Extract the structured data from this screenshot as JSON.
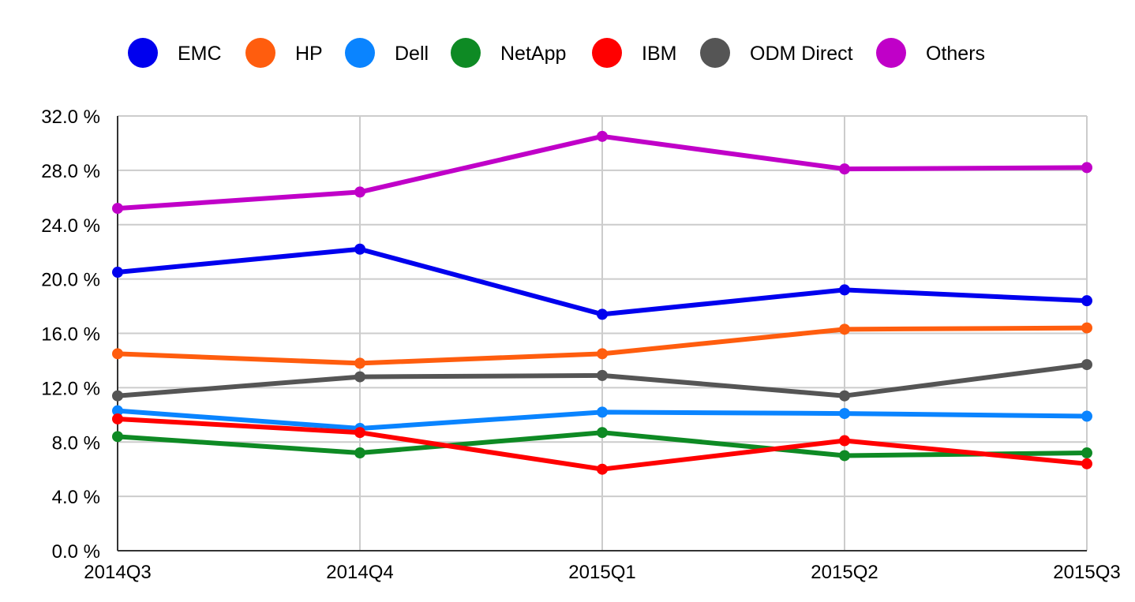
{
  "chart_data": {
    "type": "line",
    "categories": [
      "2014Q3",
      "2014Q4",
      "2015Q1",
      "2015Q2",
      "2015Q3"
    ],
    "ylim": [
      0,
      32
    ],
    "yticks": [
      "0.0 %",
      "4.0 %",
      "8.0 %",
      "12.0 %",
      "16.0 %",
      "20.0 %",
      "24.0 %",
      "28.0 %",
      "32.0 %"
    ],
    "grid": true,
    "legend_position": "top",
    "series": [
      {
        "name": "EMC",
        "color": "#0000ee",
        "values": [
          20.5,
          22.2,
          17.4,
          19.2,
          18.4
        ]
      },
      {
        "name": "HP",
        "color": "#ff5d0e",
        "values": [
          14.5,
          13.8,
          14.5,
          16.3,
          16.4
        ]
      },
      {
        "name": "Dell",
        "color": "#0a84ff",
        "values": [
          10.3,
          9.0,
          10.2,
          10.1,
          9.9
        ]
      },
      {
        "name": "NetApp",
        "color": "#0e8a24",
        "values": [
          8.4,
          7.2,
          8.7,
          7.0,
          7.2
        ]
      },
      {
        "name": "IBM",
        "color": "#ff0000",
        "values": [
          9.7,
          8.7,
          6.0,
          8.1,
          6.4
        ]
      },
      {
        "name": "ODM Direct",
        "color": "#555555",
        "values": [
          11.4,
          12.8,
          12.9,
          11.4,
          13.7
        ]
      },
      {
        "name": "Others",
        "color": "#c000c8",
        "values": [
          25.2,
          26.4,
          30.5,
          28.1,
          28.2
        ]
      }
    ]
  }
}
